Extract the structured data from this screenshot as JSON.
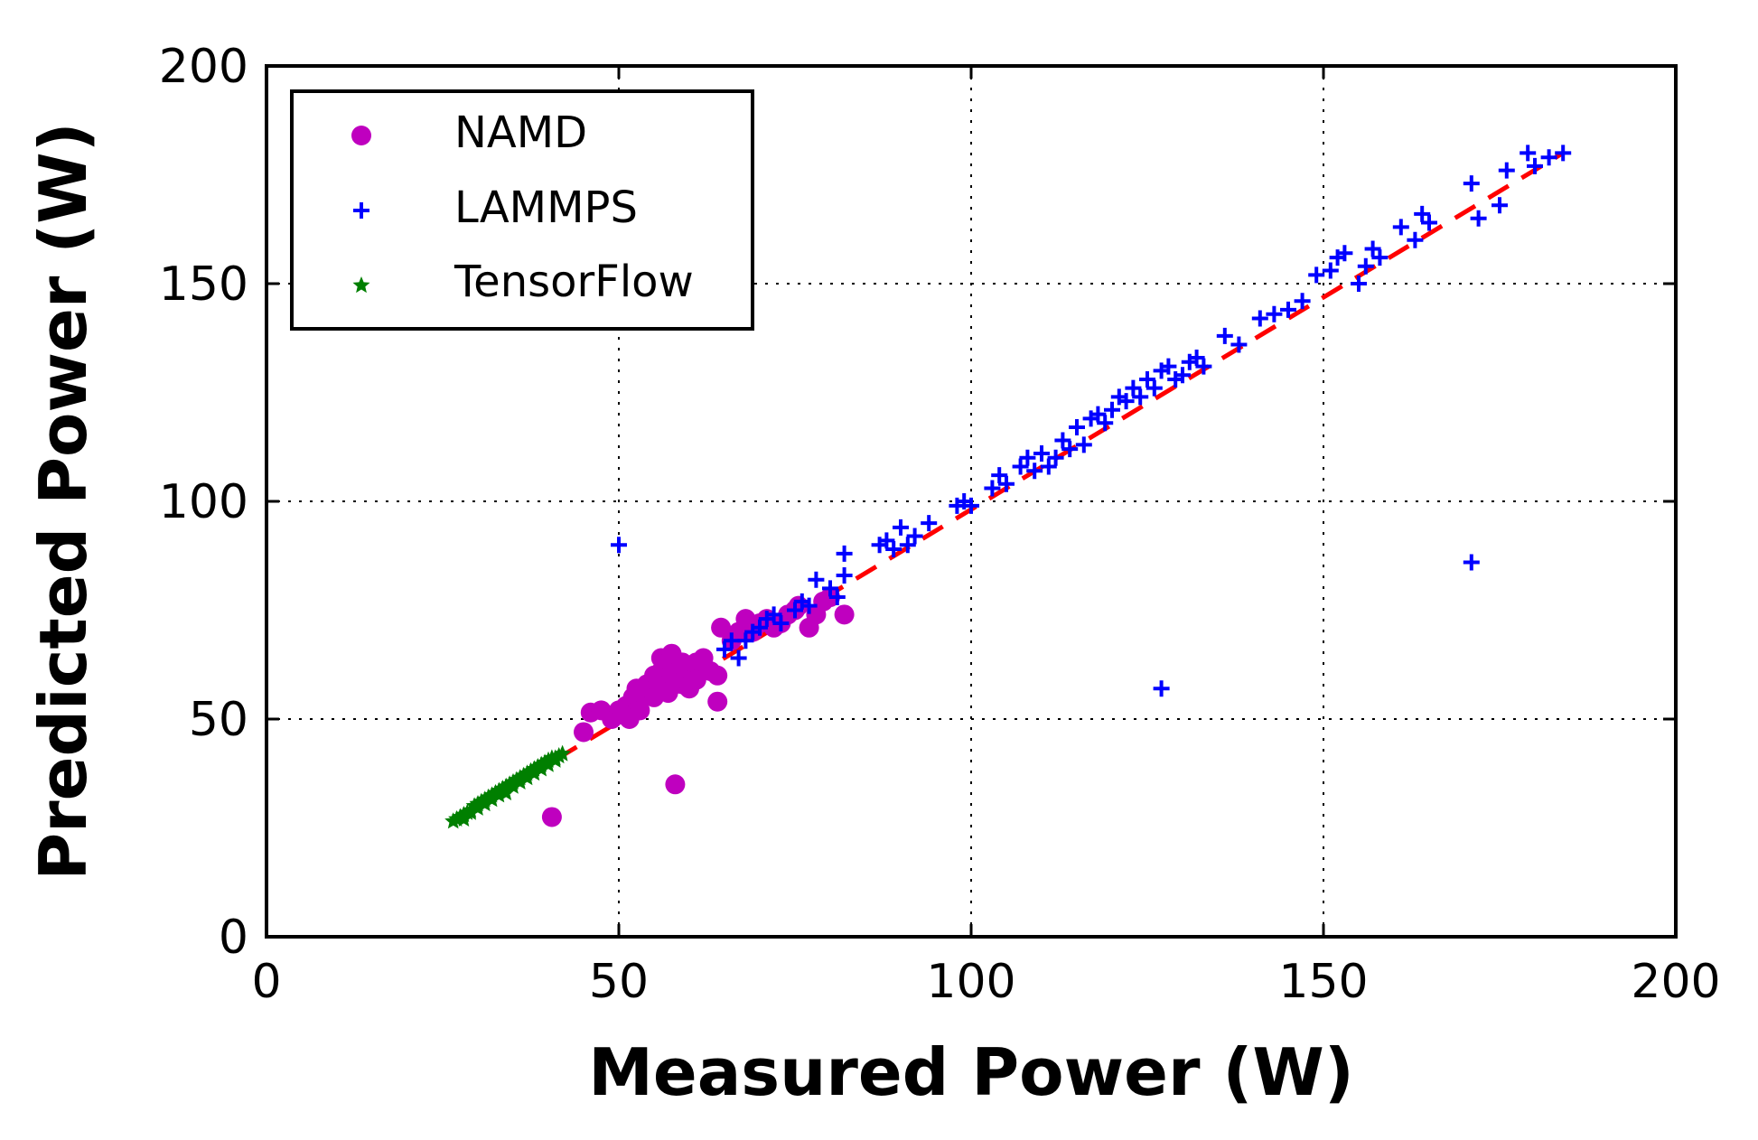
{
  "chart_data": {
    "type": "scatter",
    "xlabel": "Measured Power (W)",
    "ylabel": "Predicted Power (W)",
    "xlim": [
      0,
      200
    ],
    "ylim": [
      0,
      200
    ],
    "xticks": [
      "0",
      "50",
      "100",
      "150",
      "200"
    ],
    "yticks": [
      "0",
      "50",
      "100",
      "150",
      "200"
    ],
    "grid": true,
    "legend_position": "top-left",
    "series": [
      {
        "name": "NAMD",
        "color": "#bf00bf",
        "marker": "circle",
        "points": [
          [
            40.5,
            27.5
          ],
          [
            58,
            35
          ],
          [
            45,
            47
          ],
          [
            46,
            51.5
          ],
          [
            47.5,
            52
          ],
          [
            49,
            50
          ],
          [
            50,
            52
          ],
          [
            51,
            53
          ],
          [
            52,
            55
          ],
          [
            52.5,
            57
          ],
          [
            53,
            54
          ],
          [
            53.5,
            56
          ],
          [
            54,
            58
          ],
          [
            54.5,
            57
          ],
          [
            55,
            60
          ],
          [
            55.5,
            59
          ],
          [
            56,
            61
          ],
          [
            56.5,
            58
          ],
          [
            57,
            62
          ],
          [
            57.5,
            60
          ],
          [
            58,
            63
          ],
          [
            58.5,
            60
          ],
          [
            59,
            58
          ],
          [
            59.5,
            61
          ],
          [
            60,
            62
          ],
          [
            60.5,
            60
          ],
          [
            61,
            63
          ],
          [
            62,
            62
          ],
          [
            63,
            61
          ],
          [
            64,
            60
          ],
          [
            64,
            54
          ],
          [
            64.5,
            71
          ],
          [
            66,
            68
          ],
          [
            67,
            70
          ],
          [
            68,
            73
          ],
          [
            69,
            70
          ],
          [
            70,
            72
          ],
          [
            71,
            73
          ],
          [
            72,
            71
          ],
          [
            73,
            72
          ],
          [
            74,
            74
          ],
          [
            75,
            75
          ],
          [
            75.5,
            76
          ],
          [
            77,
            71
          ],
          [
            78,
            74
          ],
          [
            79,
            77
          ],
          [
            80,
            78
          ],
          [
            82,
            74
          ],
          [
            50.5,
            51
          ],
          [
            51.5,
            50
          ],
          [
            53,
            52
          ],
          [
            55,
            55
          ],
          [
            57,
            56
          ],
          [
            58,
            58
          ],
          [
            60,
            57
          ],
          [
            61,
            59
          ],
          [
            56,
            64
          ],
          [
            57.5,
            65
          ],
          [
            59,
            63
          ],
          [
            62,
            64
          ]
        ]
      },
      {
        "name": "LAMMPS",
        "color": "#0000ff",
        "marker": "plus",
        "points": [
          [
            50,
            90
          ],
          [
            127,
            57
          ],
          [
            171,
            86
          ],
          [
            65,
            66
          ],
          [
            66,
            68
          ],
          [
            67,
            64
          ],
          [
            68,
            68
          ],
          [
            69,
            70
          ],
          [
            70,
            71
          ],
          [
            71,
            73
          ],
          [
            72,
            74
          ],
          [
            73,
            72
          ],
          [
            75,
            75
          ],
          [
            76,
            77
          ],
          [
            77,
            76
          ],
          [
            78,
            82
          ],
          [
            80,
            80
          ],
          [
            81,
            78
          ],
          [
            82,
            83
          ],
          [
            82,
            88
          ],
          [
            87,
            90
          ],
          [
            88,
            91
          ],
          [
            89,
            89
          ],
          [
            90,
            94
          ],
          [
            91,
            90
          ],
          [
            92,
            92
          ],
          [
            94,
            95
          ],
          [
            98,
            99
          ],
          [
            99,
            100
          ],
          [
            100,
            99
          ],
          [
            103,
            103
          ],
          [
            104,
            106
          ],
          [
            105,
            104
          ],
          [
            107,
            108
          ],
          [
            108,
            110
          ],
          [
            109,
            107
          ],
          [
            110,
            111
          ],
          [
            111,
            108
          ],
          [
            112,
            110
          ],
          [
            113,
            114
          ],
          [
            114,
            112
          ],
          [
            115,
            117
          ],
          [
            116,
            113
          ],
          [
            117,
            119
          ],
          [
            118,
            120
          ],
          [
            119,
            118
          ],
          [
            120,
            121
          ],
          [
            121,
            124
          ],
          [
            122,
            123
          ],
          [
            123,
            126
          ],
          [
            124,
            124
          ],
          [
            125,
            128
          ],
          [
            126,
            126
          ],
          [
            127,
            130
          ],
          [
            128,
            131
          ],
          [
            129,
            128
          ],
          [
            130,
            129
          ],
          [
            131,
            132
          ],
          [
            132,
            133
          ],
          [
            133,
            131
          ],
          [
            136,
            138
          ],
          [
            138,
            136
          ],
          [
            141,
            142
          ],
          [
            143,
            143
          ],
          [
            145,
            144
          ],
          [
            147,
            146
          ],
          [
            149,
            152
          ],
          [
            151,
            153
          ],
          [
            152,
            156
          ],
          [
            153,
            157
          ],
          [
            155,
            150
          ],
          [
            156,
            154
          ],
          [
            157,
            158
          ],
          [
            158,
            156
          ],
          [
            161,
            163
          ],
          [
            163,
            160
          ],
          [
            164,
            166
          ],
          [
            165,
            164
          ],
          [
            171,
            173
          ],
          [
            172,
            165
          ],
          [
            175,
            168
          ],
          [
            176,
            176
          ],
          [
            179,
            180
          ],
          [
            180,
            177
          ],
          [
            182,
            179
          ],
          [
            184,
            180
          ]
        ]
      },
      {
        "name": "TensorFlow",
        "color": "#007f00",
        "marker": "star",
        "points": [
          [
            26.5,
            26.5
          ],
          [
            27,
            27
          ],
          [
            27.5,
            27.5
          ],
          [
            28,
            28
          ],
          [
            28.5,
            28.5
          ],
          [
            29,
            29
          ],
          [
            29.5,
            30
          ],
          [
            30,
            30.5
          ],
          [
            30.5,
            31
          ],
          [
            31,
            31.5
          ],
          [
            31.5,
            32
          ],
          [
            32,
            32.5
          ],
          [
            32.5,
            33
          ],
          [
            33,
            33.5
          ],
          [
            33.5,
            34
          ],
          [
            34,
            34.5
          ],
          [
            34.5,
            35
          ],
          [
            35,
            35.5
          ],
          [
            35.5,
            36
          ],
          [
            36,
            36.5
          ],
          [
            36.5,
            37
          ],
          [
            37,
            37.5
          ],
          [
            37.5,
            38
          ],
          [
            38,
            38.5
          ],
          [
            38.5,
            39
          ],
          [
            39,
            39.5
          ],
          [
            39.5,
            40
          ],
          [
            40,
            40.5
          ],
          [
            40.5,
            41
          ],
          [
            41,
            41
          ],
          [
            41.5,
            41.5
          ],
          [
            42,
            42
          ],
          [
            28,
            27
          ],
          [
            29,
            28.5
          ],
          [
            30,
            29.5
          ],
          [
            31,
            30.5
          ],
          [
            32,
            31.5
          ],
          [
            33,
            32.5
          ],
          [
            34,
            33
          ],
          [
            35,
            34.5
          ],
          [
            36,
            35.5
          ],
          [
            37,
            36.5
          ],
          [
            38,
            37.5
          ],
          [
            39,
            38.5
          ],
          [
            40,
            39.5
          ],
          [
            41,
            40.5
          ]
        ]
      }
    ],
    "reference_line": {
      "color": "#ff0000",
      "style": "dashed",
      "points": [
        [
          27,
          27
        ],
        [
          184,
          180
        ]
      ]
    }
  }
}
